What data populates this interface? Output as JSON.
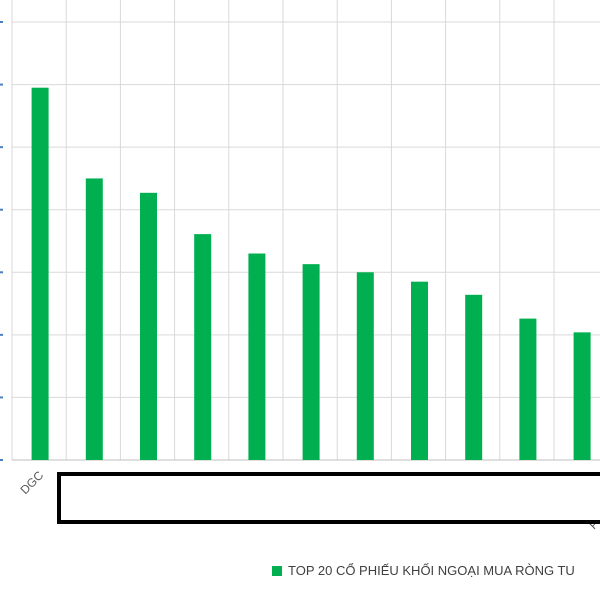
{
  "chart_data": {
    "type": "bar",
    "categories": [
      "DGC",
      "",
      "",
      "",
      "",
      "",
      "",
      "",
      "",
      "",
      ""
    ],
    "values": [
      5.95,
      4.5,
      4.27,
      3.61,
      3.3,
      3.13,
      3.0,
      2.85,
      2.64,
      2.26,
      2.04
    ],
    "ylim": [
      0,
      7
    ],
    "grid": true,
    "legend_position": "bottom",
    "series": [
      {
        "name": "TOP 20 CỔ PHIẾU KHỐI NGOẠI MUA RÒNG TU",
        "color": "#00b050"
      }
    ],
    "partial_labels": [
      "P"
    ]
  }
}
